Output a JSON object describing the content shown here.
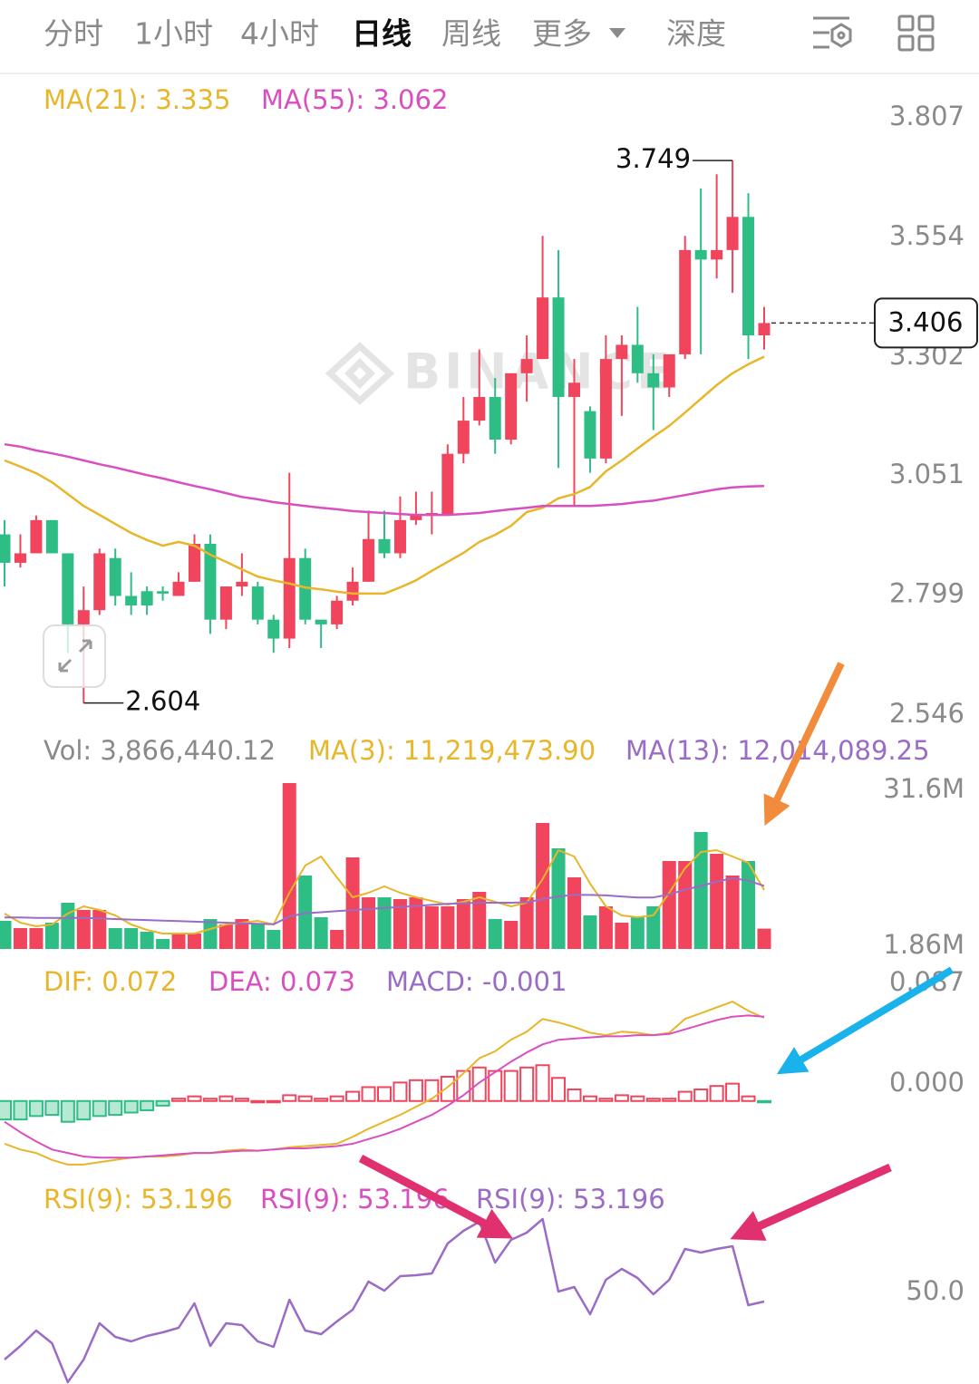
{
  "tabs": [
    "分时",
    "1小时",
    "4小时",
    "日线",
    "周线",
    "更多",
    "深度"
  ],
  "active_tab": 3,
  "watermark": "BINANCE",
  "chart_data": [
    {
      "type": "candlestick",
      "up_color": "#f0455d",
      "down_color": "#2ebd85",
      "open": [
        2.96,
        2.9,
        2.92,
        2.99,
        2.92,
        2.77,
        2.8,
        2.91,
        2.83,
        2.84,
        2.84,
        2.83,
        2.86,
        2.94,
        2.78,
        2.85,
        2.85,
        2.78,
        2.74,
        2.91,
        2.78,
        2.77,
        2.82,
        2.86,
        2.95,
        2.92,
        2.99,
        3.0,
        3.0,
        3.13,
        3.2,
        3.25,
        3.16,
        3.3,
        3.33,
        3.46,
        3.25,
        3.22,
        3.12,
        3.33,
        3.36,
        3.3,
        3.27,
        3.34,
        3.56,
        3.54,
        3.56,
        3.63,
        3.38
      ],
      "high": [
        2.99,
        2.96,
        3.0,
        2.99,
        2.92,
        2.85,
        2.93,
        2.93,
        2.88,
        2.85,
        2.85,
        2.88,
        2.96,
        2.96,
        2.85,
        2.92,
        2.86,
        2.79,
        3.09,
        2.93,
        2.78,
        2.83,
        2.89,
        3.01,
        3.01,
        3.04,
        3.05,
        3.05,
        3.15,
        3.25,
        3.35,
        3.29,
        3.3,
        3.38,
        3.59,
        3.56,
        3.33,
        3.23,
        3.38,
        3.38,
        3.44,
        3.34,
        3.34,
        3.59,
        3.69,
        3.72,
        3.749,
        3.68,
        3.44
      ],
      "low": [
        2.85,
        2.89,
        2.92,
        2.92,
        2.71,
        2.604,
        2.79,
        2.81,
        2.79,
        2.79,
        2.82,
        2.83,
        2.86,
        2.75,
        2.76,
        2.83,
        2.77,
        2.71,
        2.72,
        2.77,
        2.72,
        2.76,
        2.81,
        2.86,
        2.91,
        2.91,
        2.98,
        2.96,
        3.0,
        3.11,
        3.19,
        3.13,
        3.15,
        3.24,
        3.33,
        3.1,
        3.02,
        3.09,
        3.11,
        3.21,
        3.28,
        3.18,
        3.25,
        3.33,
        3.34,
        3.5,
        3.47,
        3.33,
        3.35
      ],
      "close": [
        2.9,
        2.92,
        2.99,
        2.92,
        2.77,
        2.8,
        2.92,
        2.83,
        2.81,
        2.81,
        2.835,
        2.86,
        2.94,
        2.78,
        2.85,
        2.86,
        2.78,
        2.74,
        2.91,
        2.78,
        2.77,
        2.82,
        2.86,
        2.95,
        2.92,
        2.99,
        3.0,
        3.005,
        3.13,
        3.2,
        3.25,
        3.16,
        3.3,
        3.33,
        3.46,
        3.25,
        3.28,
        3.12,
        3.33,
        3.36,
        3.3,
        3.27,
        3.34,
        3.56,
        3.54,
        3.56,
        3.63,
        3.38,
        3.406
      ],
      "series": [
        {
          "name": "MA(21): 3.335",
          "color": "#e8b62a",
          "values": [
            3.116,
            3.103,
            3.089,
            3.07,
            3.045,
            3.02,
            3.001,
            2.982,
            2.963,
            2.948,
            2.936,
            2.944,
            2.936,
            2.917,
            2.902,
            2.886,
            2.871,
            2.863,
            2.856,
            2.848,
            2.844,
            2.839,
            2.835,
            2.835,
            2.835,
            2.848,
            2.863,
            2.883,
            2.902,
            2.921,
            2.944,
            2.959,
            2.978,
            3.007,
            3.016,
            3.036,
            3.045,
            3.06,
            3.093,
            3.116,
            3.141,
            3.166,
            3.189,
            3.217,
            3.246,
            3.275,
            3.3,
            3.319,
            3.335
          ]
        },
        {
          "name": "MA(55): 3.062",
          "color": "#d94fbf",
          "values": [
            3.15,
            3.145,
            3.137,
            3.131,
            3.124,
            3.116,
            3.108,
            3.101,
            3.093,
            3.085,
            3.078,
            3.07,
            3.062,
            3.055,
            3.047,
            3.039,
            3.034,
            3.028,
            3.024,
            3.02,
            3.016,
            3.013,
            3.009,
            3.007,
            3.005,
            3.003,
            3.001,
            3.001,
            3.001,
            3.003,
            3.005,
            3.009,
            3.013,
            3.016,
            3.02,
            3.02,
            3.02,
            3.02,
            3.022,
            3.024,
            3.028,
            3.031,
            3.037,
            3.043,
            3.049,
            3.055,
            3.059,
            3.061,
            3.062
          ]
        }
      ],
      "ylim": [
        2.546,
        3.906
      ],
      "yticks": [
        3.807,
        3.554,
        3.302,
        3.051,
        2.799,
        2.546
      ],
      "high_label": 3.749,
      "low_label": 2.604,
      "last_price": 3.406
    },
    {
      "type": "bar",
      "series": [
        {
          "name": "Vol: 3,866,440.12",
          "color": "#8a8a8a",
          "style": "bar",
          "values": [
            5350000.0,
            3970000.0,
            3970000.0,
            5010000.0,
            8810000.0,
            7430000.0,
            7430000.0,
            3970000.0,
            3970000.0,
            3280000.0,
            1900000.0,
            2940000.0,
            2940000.0,
            5700000.0,
            4660000.0,
            5700000.0,
            4660000.0,
            3630000.0,
            31600000.0,
            13990000.0,
            6040000.0,
            3630000.0,
            17440000.0,
            9840000.0,
            9840000.0,
            9500000.0,
            9840000.0,
            8120000.0,
            8120000.0,
            9500000.0,
            10880000.0,
            5700000.0,
            5350000.0,
            9840000.0,
            24000000.0,
            19170000.0,
            13640000.0,
            6390000.0,
            8120000.0,
            5010000.0,
            6040000.0,
            8120000.0,
            16750000.0,
            16750000.0,
            22280000.0,
            18130000.0,
            13990000.0,
            16750000.0,
            3866440.12
          ]
        },
        {
          "name": "MA(3): 11,219,473.90",
          "color": "#e8b62a",
          "style": "line",
          "values": [
            6740000.0,
            5010000.0,
            4320000.0,
            4660000.0,
            6740000.0,
            8120000.0,
            7430000.0,
            6390000.0,
            4660000.0,
            3630000.0,
            2940000.0,
            2940000.0,
            2940000.0,
            3800000.0,
            4660000.0,
            5010000.0,
            5350000.0,
            4660000.0,
            10710000.0,
            15890000.0,
            17620000.0,
            13640000.0,
            9840000.0,
            10710000.0,
            11920000.0,
            10710000.0,
            9840000.0,
            9150000.0,
            8460000.0,
            8980000.0,
            9840000.0,
            8980000.0,
            8120000.0,
            8810000.0,
            13300000.0,
            18820000.0,
            17620000.0,
            12430000.0,
            8120000.0,
            6390000.0,
            6040000.0,
            6390000.0,
            10710000.0,
            15370000.0,
            18480000.0,
            18820000.0,
            17620000.0,
            16410000.0,
            11219473.9
          ]
        },
        {
          "name": "MA(13): 12,014,089.25",
          "color": "#9a6cc6",
          "style": "line",
          "values": [
            6000000.0,
            6000000.0,
            5900000.0,
            5900000.0,
            5900000.0,
            5900000.0,
            5800000.0,
            5700000.0,
            5600000.0,
            5500000.0,
            5400000.0,
            5300000.0,
            5200000.0,
            5100000.0,
            5000000.0,
            4900000.0,
            4800000.0,
            4700000.0,
            6200000.0,
            6800000.0,
            7000000.0,
            7200000.0,
            7400000.0,
            7600000.0,
            7800000.0,
            8000000.0,
            8200000.0,
            8400000.0,
            8600000.0,
            8700000.0,
            8800000.0,
            8800000.0,
            8800000.0,
            8900000.0,
            9500000.0,
            10000000.0,
            10300000.0,
            10300000.0,
            10200000.0,
            10000000.0,
            9800000.0,
            9800000.0,
            10400000.0,
            11300000.0,
            12000000.0,
            12800000.0,
            13500000.0,
            13000000.0,
            12014089.25
          ]
        }
      ],
      "ylim": [
        0,
        31600000
      ],
      "yticks": [
        {
          "value": 31600000,
          "label": "31.6M"
        },
        {
          "value": 1860000,
          "label": "1.86M"
        }
      ]
    },
    {
      "type": "macd",
      "series": [
        {
          "name": "DIF: 0.072",
          "color": "#e8b62a",
          "style": "line",
          "values": [
            -0.037,
            -0.042,
            -0.045,
            -0.051,
            -0.055,
            -0.055,
            -0.053,
            -0.051,
            -0.049,
            -0.048,
            -0.048,
            -0.047,
            -0.045,
            -0.045,
            -0.043,
            -0.042,
            -0.043,
            -0.042,
            -0.04,
            -0.039,
            -0.038,
            -0.037,
            -0.031,
            -0.024,
            -0.018,
            -0.012,
            -0.005,
            0.002,
            0.012,
            0.024,
            0.037,
            0.043,
            0.053,
            0.06,
            0.071,
            0.068,
            0.064,
            0.059,
            0.057,
            0.06,
            0.059,
            0.057,
            0.059,
            0.071,
            0.076,
            0.081,
            0.086,
            0.078,
            0.072
          ]
        },
        {
          "name": "DEA: 0.073",
          "color": "#d94fbf",
          "style": "line",
          "values": [
            -0.018,
            -0.027,
            -0.035,
            -0.042,
            -0.045,
            -0.048,
            -0.049,
            -0.049,
            -0.049,
            -0.048,
            -0.047,
            -0.046,
            -0.045,
            -0.045,
            -0.044,
            -0.043,
            -0.043,
            -0.042,
            -0.041,
            -0.041,
            -0.04,
            -0.039,
            -0.037,
            -0.033,
            -0.029,
            -0.024,
            -0.018,
            -0.012,
            -0.004,
            0.005,
            0.016,
            0.025,
            0.034,
            0.042,
            0.049,
            0.053,
            0.054,
            0.055,
            0.056,
            0.056,
            0.057,
            0.057,
            0.058,
            0.062,
            0.066,
            0.07,
            0.073,
            0.074,
            0.073
          ]
        },
        {
          "name": "MACD: -0.001",
          "color": "#9a6cc6",
          "style": "bar",
          "values": [
            -0.016,
            -0.016,
            -0.013,
            -0.012,
            -0.018,
            -0.016,
            -0.013,
            -0.012,
            -0.01,
            -0.008,
            -0.004,
            0.002,
            0.004,
            0.002,
            0.004,
            0.002,
            0,
            0,
            0.005,
            0.004,
            0.002,
            0.004,
            0.008,
            0.012,
            0.012,
            0.016,
            0.018,
            0.018,
            0.021,
            0.026,
            0.029,
            0.026,
            0.026,
            0.029,
            0.031,
            0.02,
            0.01,
            0.004,
            0.002,
            0.005,
            0.004,
            0.002,
            0.002,
            0.008,
            0.01,
            0.013,
            0.015,
            0.004,
            -0.001
          ]
        }
      ],
      "ylim": [
        -0.059,
        0.09
      ],
      "yticks": [
        0.087,
        {
          "value": 0,
          "label": "0.000"
        }
      ]
    },
    {
      "type": "line",
      "legend": [
        {
          "text": "RSI(9): 53.196",
          "color": "#e8b62a"
        },
        {
          "text": "RSI(9): 53.196",
          "color": "#d94fbf"
        },
        {
          "text": "RSI(9): 53.196",
          "color": "#9a6cc6"
        }
      ],
      "series": [
        {
          "color": "#9a6cc6",
          "values": [
            40.4,
            43.4,
            46.8,
            44.0,
            35.4,
            40.4,
            48.4,
            45.4,
            44.4,
            45.6,
            46.4,
            47.4,
            52.8,
            43.4,
            48.4,
            48.0,
            44.4,
            43.2,
            53.6,
            46.8,
            46.0,
            48.8,
            51.4,
            57.6,
            55.6,
            58.8,
            59.0,
            59.4,
            66.0,
            68.8,
            70.8,
            61.8,
            66.8,
            68.4,
            71.4,
            55.4,
            56.4,
            50.4,
            58.0,
            60.4,
            58.4,
            54.8,
            58.0,
            64.8,
            64.0,
            64.8,
            65.4,
            52.4,
            53.196
          ]
        }
      ],
      "ylim": [
        35,
        72
      ],
      "yticks": [
        {
          "value": 50,
          "label": "50.0"
        }
      ]
    }
  ]
}
